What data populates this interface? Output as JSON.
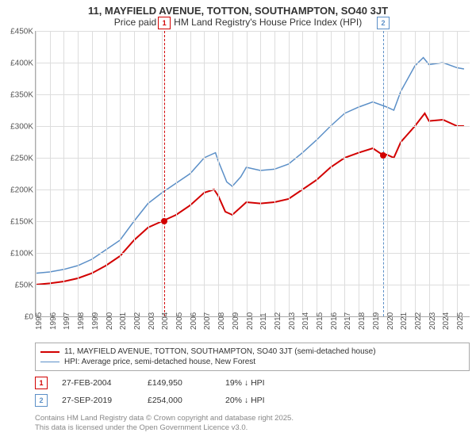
{
  "title": "11, MAYFIELD AVENUE, TOTTON, SOUTHAMPTON, SO40 3JT",
  "subtitle": "Price paid vs. HM Land Registry's House Price Index (HPI)",
  "chart": {
    "type": "line",
    "xlim": [
      1995,
      2025.9
    ],
    "ylim": [
      0,
      450000
    ],
    "x_ticks": [
      1995,
      1996,
      1997,
      1998,
      1999,
      2000,
      2001,
      2002,
      2003,
      2004,
      2005,
      2006,
      2007,
      2008,
      2009,
      2010,
      2011,
      2012,
      2013,
      2014,
      2015,
      2016,
      2017,
      2018,
      2019,
      2020,
      2021,
      2022,
      2023,
      2024,
      2025
    ],
    "y_ticks": [
      0,
      50000,
      100000,
      150000,
      200000,
      250000,
      300000,
      350000,
      400000,
      450000
    ],
    "y_tick_labels": [
      "£0",
      "£50K",
      "£100K",
      "£150K",
      "£200K",
      "£250K",
      "£300K",
      "£350K",
      "£400K",
      "£450K"
    ],
    "grid_color": "#dddddd",
    "axis_color": "#aaaaaa",
    "background_color": "#ffffff",
    "series": [
      {
        "name": "property",
        "label": "11, MAYFIELD AVENUE, TOTTON, SOUTHAMPTON, SO40 3JT (semi-detached house)",
        "color": "#d20000",
        "width": 2,
        "data": [
          [
            1995,
            50000
          ],
          [
            1996,
            52000
          ],
          [
            1997,
            55000
          ],
          [
            1998,
            60000
          ],
          [
            1999,
            68000
          ],
          [
            2000,
            80000
          ],
          [
            2001,
            95000
          ],
          [
            2002,
            120000
          ],
          [
            2003,
            140000
          ],
          [
            2004,
            150000
          ],
          [
            2004.5,
            155000
          ],
          [
            2005,
            160000
          ],
          [
            2006,
            175000
          ],
          [
            2007,
            195000
          ],
          [
            2007.7,
            200000
          ],
          [
            2008,
            190000
          ],
          [
            2008.5,
            165000
          ],
          [
            2009,
            160000
          ],
          [
            2009.5,
            170000
          ],
          [
            2010,
            180000
          ],
          [
            2011,
            178000
          ],
          [
            2012,
            180000
          ],
          [
            2013,
            185000
          ],
          [
            2014,
            200000
          ],
          [
            2015,
            215000
          ],
          [
            2016,
            235000
          ],
          [
            2017,
            250000
          ],
          [
            2018,
            258000
          ],
          [
            2019,
            265000
          ],
          [
            2019.75,
            254000
          ],
          [
            2020,
            255000
          ],
          [
            2020.5,
            250000
          ],
          [
            2021,
            275000
          ],
          [
            2022,
            300000
          ],
          [
            2022.7,
            320000
          ],
          [
            2023,
            308000
          ],
          [
            2024,
            310000
          ],
          [
            2025,
            300000
          ],
          [
            2025.5,
            300000
          ]
        ]
      },
      {
        "name": "hpi",
        "label": "HPI: Average price, semi-detached house, New Forest",
        "color": "#5b8fc7",
        "width": 1.5,
        "data": [
          [
            1995,
            68000
          ],
          [
            1996,
            70000
          ],
          [
            1997,
            74000
          ],
          [
            1998,
            80000
          ],
          [
            1999,
            90000
          ],
          [
            2000,
            105000
          ],
          [
            2001,
            120000
          ],
          [
            2002,
            150000
          ],
          [
            2003,
            178000
          ],
          [
            2004,
            195000
          ],
          [
            2005,
            210000
          ],
          [
            2006,
            225000
          ],
          [
            2007,
            250000
          ],
          [
            2007.8,
            258000
          ],
          [
            2008,
            245000
          ],
          [
            2008.6,
            212000
          ],
          [
            2009,
            205000
          ],
          [
            2009.6,
            220000
          ],
          [
            2010,
            235000
          ],
          [
            2011,
            230000
          ],
          [
            2012,
            232000
          ],
          [
            2013,
            240000
          ],
          [
            2014,
            258000
          ],
          [
            2015,
            278000
          ],
          [
            2016,
            300000
          ],
          [
            2017,
            320000
          ],
          [
            2018,
            330000
          ],
          [
            2019,
            338000
          ],
          [
            2020,
            330000
          ],
          [
            2020.5,
            325000
          ],
          [
            2021,
            355000
          ],
          [
            2022,
            395000
          ],
          [
            2022.6,
            408000
          ],
          [
            2023,
            397000
          ],
          [
            2024,
            400000
          ],
          [
            2025,
            392000
          ],
          [
            2025.5,
            390000
          ]
        ]
      }
    ],
    "markers": [
      {
        "id": "1",
        "x": 2004.16,
        "color": "#d20000",
        "point_y": 149950
      },
      {
        "id": "2",
        "x": 2019.74,
        "color": "#5b8fc7",
        "point_y": 254000
      }
    ]
  },
  "legend": {
    "rows": [
      {
        "color": "#d20000",
        "width": 2,
        "text": "11, MAYFIELD AVENUE, TOTTON, SOUTHAMPTON, SO40 3JT (semi-detached house)"
      },
      {
        "color": "#5b8fc7",
        "width": 1.5,
        "text": "HPI: Average price, semi-detached house, New Forest"
      }
    ]
  },
  "sales": [
    {
      "id": "1",
      "color": "#d20000",
      "date": "27-FEB-2004",
      "price": "£149,950",
      "delta": "19% ↓ HPI"
    },
    {
      "id": "2",
      "color": "#5b8fc7",
      "date": "27-SEP-2019",
      "price": "£254,000",
      "delta": "20% ↓ HPI"
    }
  ],
  "footer1": "Contains HM Land Registry data © Crown copyright and database right 2025.",
  "footer2": "This data is licensed under the Open Government Licence v3.0."
}
